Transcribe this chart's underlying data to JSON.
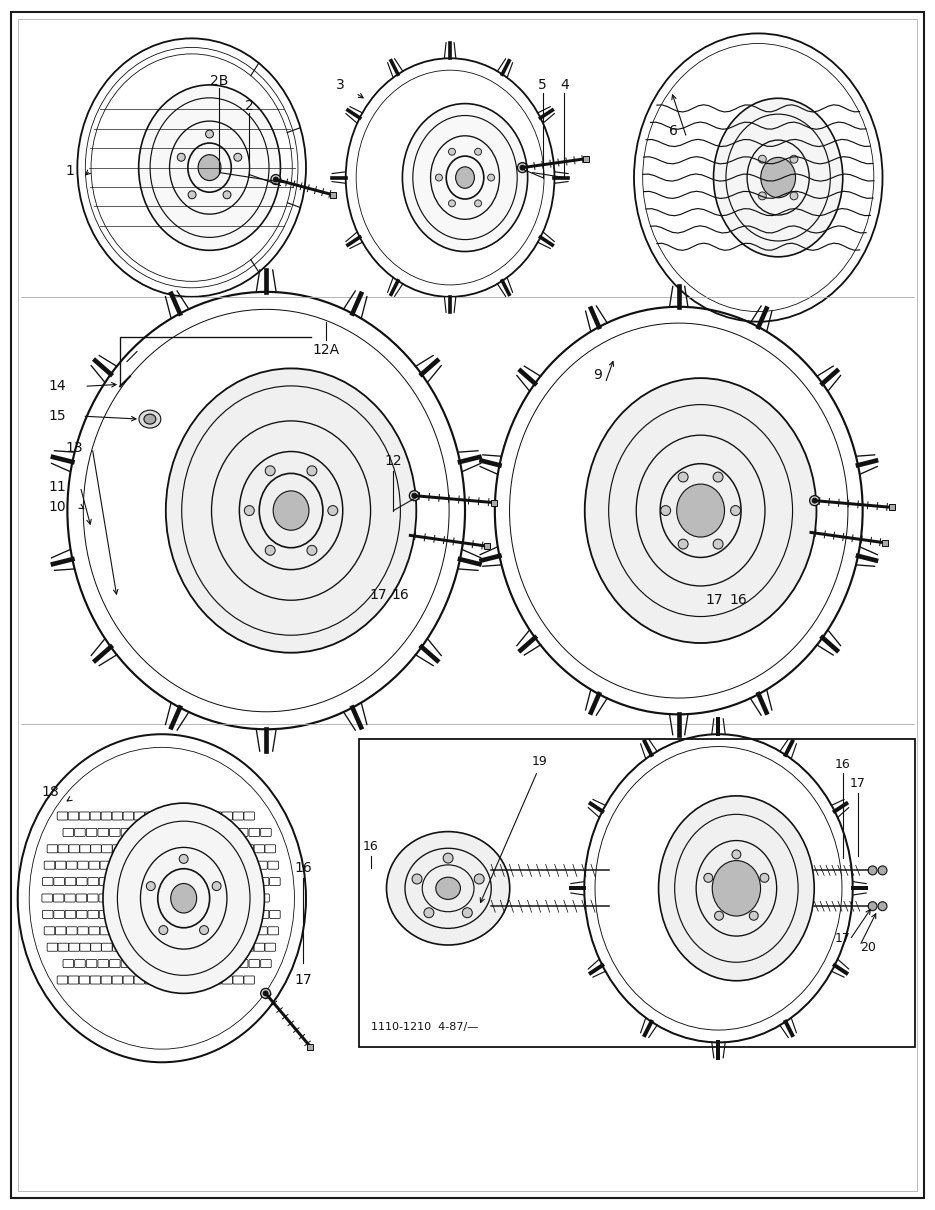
{
  "bg": "#ffffff",
  "border": "#1a1a1a",
  "tc": "#111111",
  "pw": 9.35,
  "ph": 12.1,
  "footer": "1110-1210  4-87/—"
}
